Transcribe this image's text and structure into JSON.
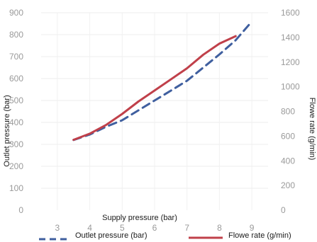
{
  "chart_data": {
    "type": "line",
    "xlabel": "Supply pressure (bar)",
    "ylabel": "Outlet pressure (bar)",
    "y2label": "Flowe rate (g/min)",
    "xlim": [
      2.5,
      9.5
    ],
    "ylim": [
      0,
      900
    ],
    "y2lim": [
      0,
      1600
    ],
    "x_ticks": [
      3,
      4,
      5,
      6,
      7,
      8,
      9
    ],
    "y_ticks": [
      0,
      100,
      200,
      300,
      400,
      500,
      600,
      700,
      800,
      900
    ],
    "y2_ticks": [
      0,
      200,
      400,
      600,
      800,
      1000,
      1200,
      1400,
      1600
    ],
    "grid": true,
    "legend_position": "bottom",
    "series": [
      {
        "name": "Outlet pressure (bar)",
        "axis": "left",
        "color": "#3f5f9f",
        "style": "dashed",
        "x": [
          3.5,
          4,
          4.5,
          5,
          5.5,
          6,
          6.5,
          7,
          7.5,
          8,
          8.5,
          9
        ],
        "values": [
          320,
          345,
          380,
          410,
          455,
          500,
          545,
          590,
          650,
          710,
          775,
          860
        ]
      },
      {
        "name": "Flowe rate (g/min)",
        "axis": "right",
        "color": "#c0404a",
        "style": "solid",
        "x": [
          3.5,
          4,
          4.5,
          5,
          5.5,
          6,
          6.5,
          7,
          7.5,
          8,
          8.5
        ],
        "values": [
          570,
          620,
          690,
          780,
          880,
          970,
          1060,
          1150,
          1260,
          1350,
          1410
        ]
      }
    ]
  }
}
